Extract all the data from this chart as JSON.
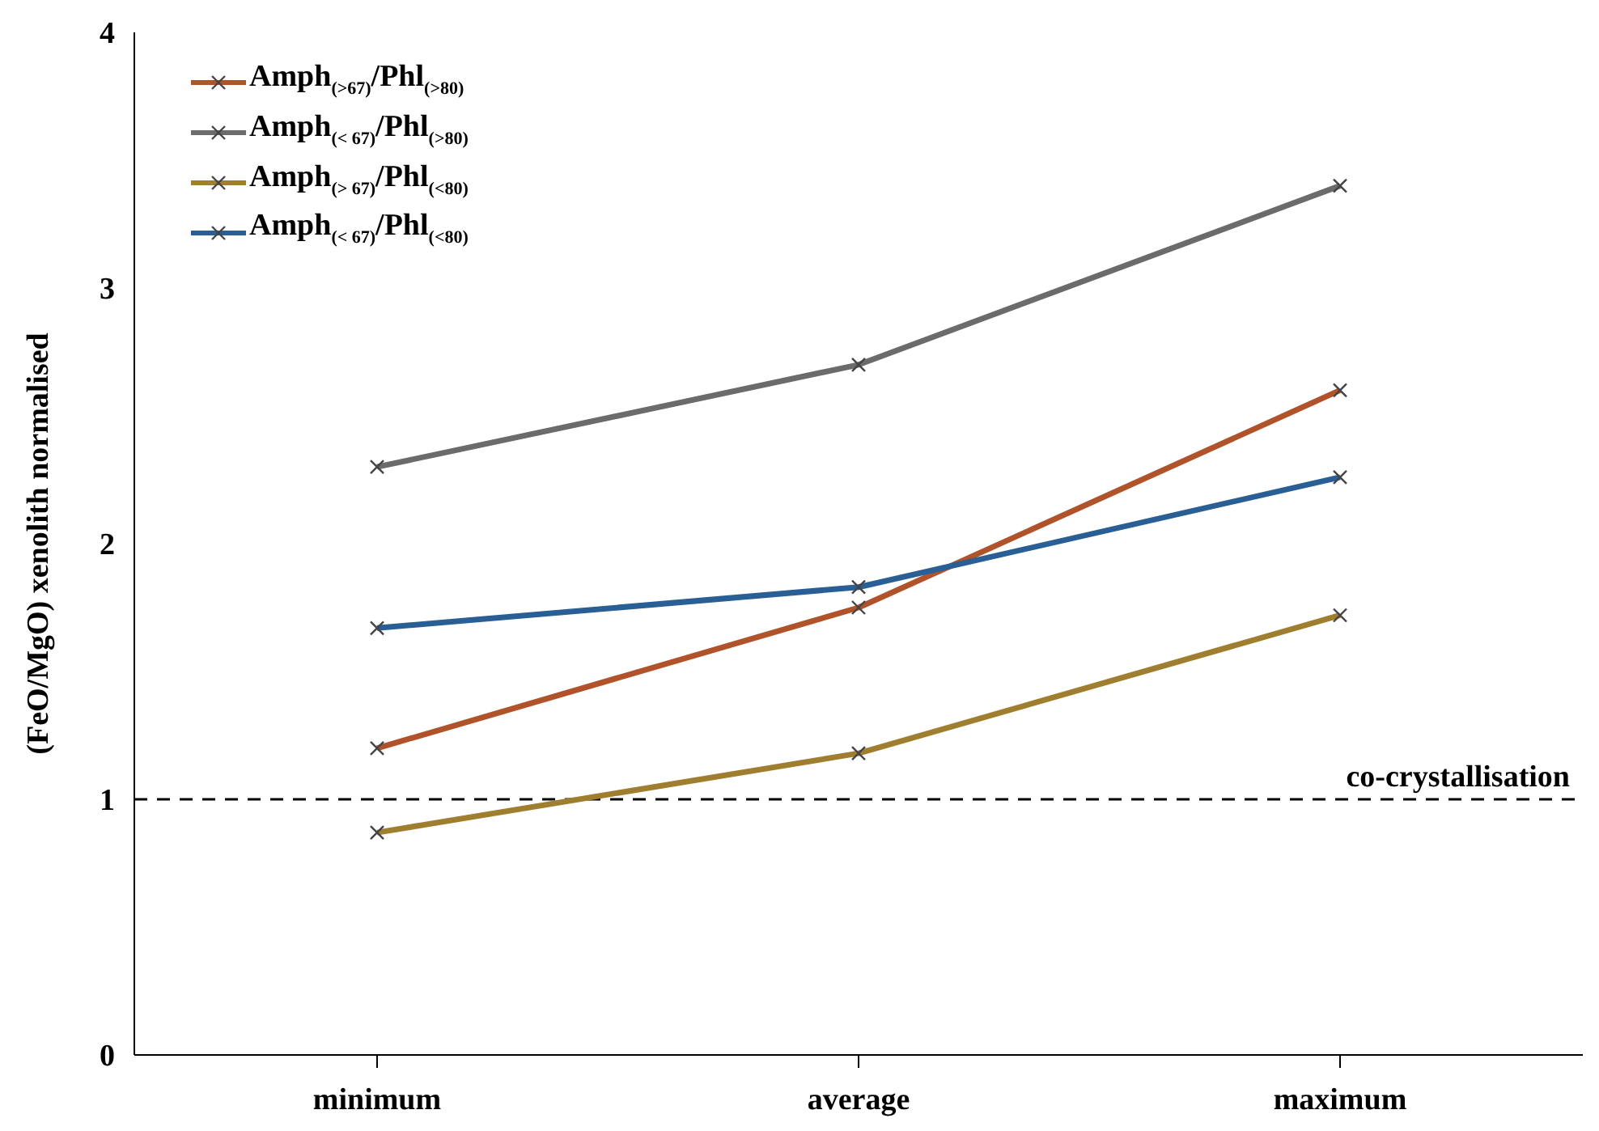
{
  "chart_data": {
    "type": "line",
    "ylabel": "(FeO/MgO) xenolith normalised",
    "categories": [
      "minimum",
      "average",
      "maximum"
    ],
    "series": [
      {
        "name": "Amph$_{(>67)}$/Phl$_{(>80)}$",
        "color": "#b0522a",
        "values": [
          1.2,
          1.75,
          2.6
        ]
      },
      {
        "name": "Amph$_{(< 67)}$/Phl$_{(>80)}$",
        "color": "#6b6b6b",
        "values": [
          2.3,
          2.7,
          3.4
        ]
      },
      {
        "name": "Amph$_{(> 67)}$/Phl$_{(<80)}$",
        "color": "#a07e30",
        "values": [
          0.87,
          1.18,
          1.72
        ]
      },
      {
        "name": "Amph$_{(< 67)}$/Phl$_{(<80)}$",
        "color": "#2a5f95",
        "values": [
          1.67,
          1.83,
          2.26
        ]
      }
    ],
    "ylim": [
      0,
      4
    ],
    "yticks": [
      0,
      1,
      2,
      3,
      4
    ],
    "grid": false,
    "legend": "top left",
    "marker": "cross",
    "line_style": "solid",
    "ref_lines": [
      {
        "axis": "y",
        "value": 1,
        "label": "co-crystallisation",
        "color": "#000000",
        "line_style": "dashed"
      }
    ]
  }
}
